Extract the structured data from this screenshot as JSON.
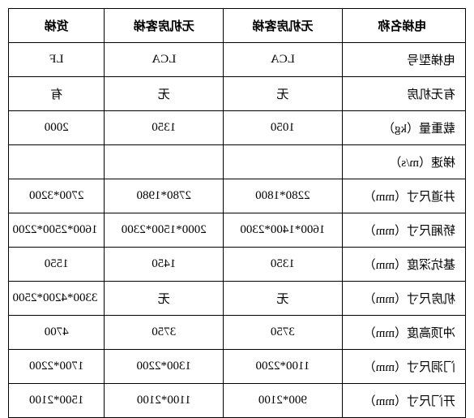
{
  "table": {
    "columns": [
      "电梯名称",
      "无机房客梯",
      "无机房客梯",
      "货梯"
    ],
    "rows": [
      [
        "电梯型号",
        "LCA",
        "LCA",
        "LF"
      ],
      [
        "有无机房",
        "无",
        "无",
        "有"
      ],
      [
        "载重量（kg）",
        "1050",
        "1350",
        "2000"
      ],
      [
        "梯速（m/s）",
        "",
        "",
        ""
      ],
      [
        "井道尺寸（mm）",
        "2280*1800",
        "2780*1980",
        "2700*3200"
      ],
      [
        "轿厢尺寸（mm）",
        "1600*1400*2300",
        "2000*1500*2300",
        "1600*2500*2200"
      ],
      [
        "基坑深度（mm）",
        "1350",
        "1450",
        "1550"
      ],
      [
        "机房尺寸（mm）",
        "无",
        "无",
        "3300*4200*2500"
      ],
      [
        "冲顶高度（mm）",
        "3750",
        "3750",
        "4700"
      ],
      [
        "门洞尺寸（mm）",
        "1100*2200",
        "1300*2200",
        "1700*2200"
      ],
      [
        "开门尺寸（mm）",
        "900*2100",
        "1100*2100",
        "1500*2100"
      ]
    ],
    "border_color": "#000000",
    "background_color": "#ffffff",
    "font_size": 15,
    "mirrored": true
  }
}
